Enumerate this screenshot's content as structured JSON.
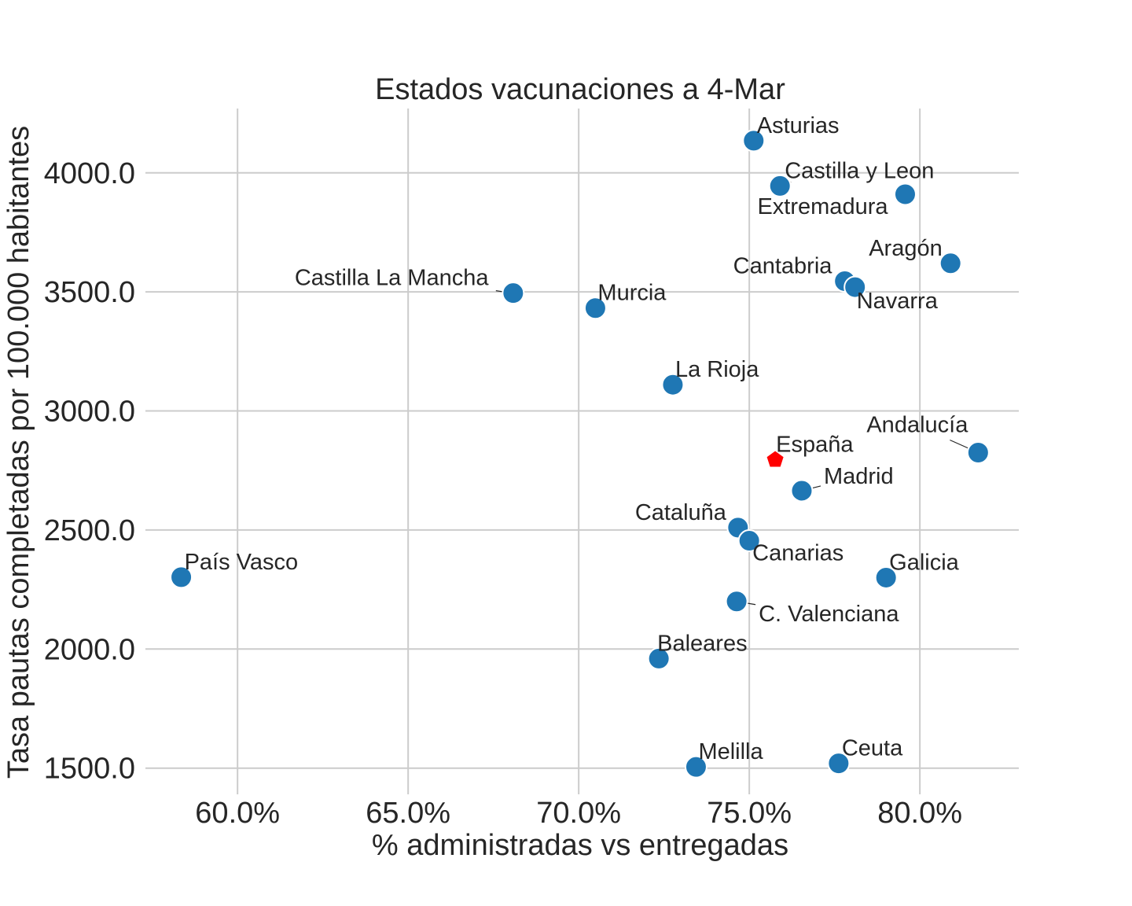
{
  "chart_data": {
    "type": "scatter",
    "title": "Estados vacunaciones a 4-Mar",
    "xlabel": "% administradas vs entregadas",
    "ylabel": "Tasa pautas completadas por 100.000 habitantes",
    "xlim": [
      0.573,
      0.829
    ],
    "ylim": [
      1390,
      4270
    ],
    "x_ticks": [
      0.6,
      0.65,
      0.7,
      0.75,
      0.8
    ],
    "x_tick_labels": [
      "60.0%",
      "65.0%",
      "70.0%",
      "75.0%",
      "80.0%"
    ],
    "y_ticks": [
      1500,
      2000,
      2500,
      3000,
      3500,
      4000
    ],
    "y_tick_labels": [
      "1500.0",
      "2000.0",
      "2500.0",
      "3000.0",
      "3500.0",
      "4000.0"
    ],
    "grid": true,
    "colors": {
      "regions": "#1f77b4",
      "national": "#ff0000"
    },
    "points": [
      {
        "name": "Asturias",
        "x": 0.7513,
        "y": 4135,
        "marker": "circle"
      },
      {
        "name": "Castilla y Leon",
        "x": 0.759,
        "y": 3945,
        "marker": "circle"
      },
      {
        "name": "Extremadura",
        "x": 0.7957,
        "y": 3910,
        "marker": "circle"
      },
      {
        "name": "Aragón",
        "x": 0.809,
        "y": 3620,
        "marker": "circle"
      },
      {
        "name": "Cantabria",
        "x": 0.778,
        "y": 3545,
        "marker": "circle"
      },
      {
        "name": "Navarra",
        "x": 0.781,
        "y": 3520,
        "marker": "circle"
      },
      {
        "name": "Castilla La Mancha",
        "x": 0.6808,
        "y": 3495,
        "marker": "circle"
      },
      {
        "name": "Murcia",
        "x": 0.7049,
        "y": 3432,
        "marker": "circle"
      },
      {
        "name": "La Rioja",
        "x": 0.7276,
        "y": 3110,
        "marker": "circle"
      },
      {
        "name": "Andalucía",
        "x": 0.8171,
        "y": 2825,
        "marker": "circle"
      },
      {
        "name": "España",
        "x": 0.7576,
        "y": 2795,
        "marker": "pentagon"
      },
      {
        "name": "Madrid",
        "x": 0.7654,
        "y": 2665,
        "marker": "circle"
      },
      {
        "name": "Cataluña",
        "x": 0.7467,
        "y": 2510,
        "marker": "circle"
      },
      {
        "name": "Canarias",
        "x": 0.75,
        "y": 2455,
        "marker": "circle"
      },
      {
        "name": "País Vasco",
        "x": 0.5835,
        "y": 2302,
        "marker": "circle"
      },
      {
        "name": "Galicia",
        "x": 0.7901,
        "y": 2300,
        "marker": "circle"
      },
      {
        "name": "C. Valenciana",
        "x": 0.7463,
        "y": 2200,
        "marker": "circle"
      },
      {
        "name": "Baleares",
        "x": 0.7235,
        "y": 1960,
        "marker": "circle"
      },
      {
        "name": "Melilla",
        "x": 0.7344,
        "y": 1505,
        "marker": "circle"
      },
      {
        "name": "Ceuta",
        "x": 0.7762,
        "y": 1520,
        "marker": "circle"
      }
    ]
  }
}
